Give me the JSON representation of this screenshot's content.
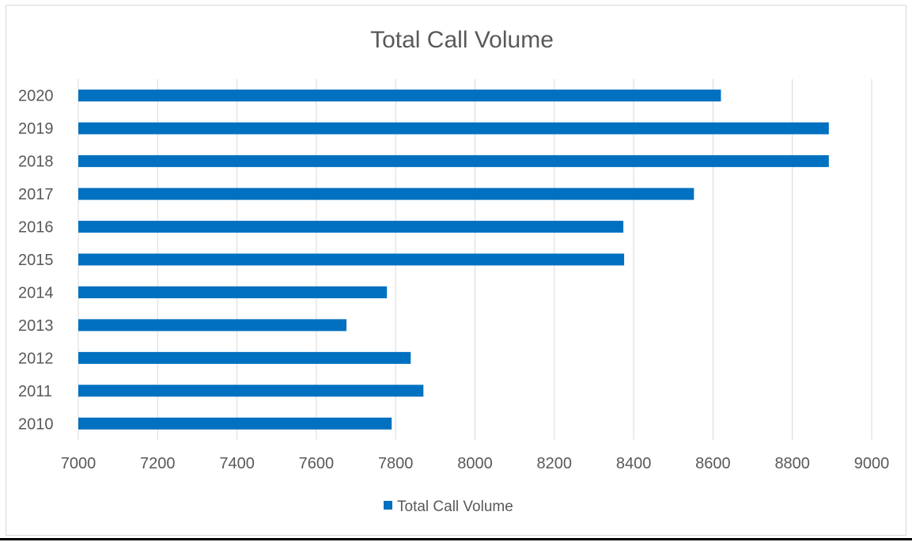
{
  "chart_data": {
    "type": "bar",
    "orientation": "horizontal",
    "title": "Total Call Volume",
    "xlabel": "",
    "ylabel": "",
    "categories": [
      "2010",
      "2011",
      "2012",
      "2013",
      "2014",
      "2015",
      "2016",
      "2017",
      "2018",
      "2019",
      "2020"
    ],
    "series": [
      {
        "name": "Total Call Volume",
        "values": [
          7790,
          7870,
          7838,
          7676,
          7778,
          8376,
          8374,
          8552,
          8892,
          8892,
          8620
        ]
      }
    ],
    "xlim": [
      7000,
      9000
    ],
    "xticks": [
      "7000",
      "7200",
      "7400",
      "7600",
      "7800",
      "8000",
      "8200",
      "8400",
      "8600",
      "8800",
      "9000"
    ],
    "grid": "vertical",
    "legend_position": "bottom",
    "colors": {
      "bar": "#0070C0",
      "grid": "#d9d9d9",
      "text": "#595959"
    }
  }
}
